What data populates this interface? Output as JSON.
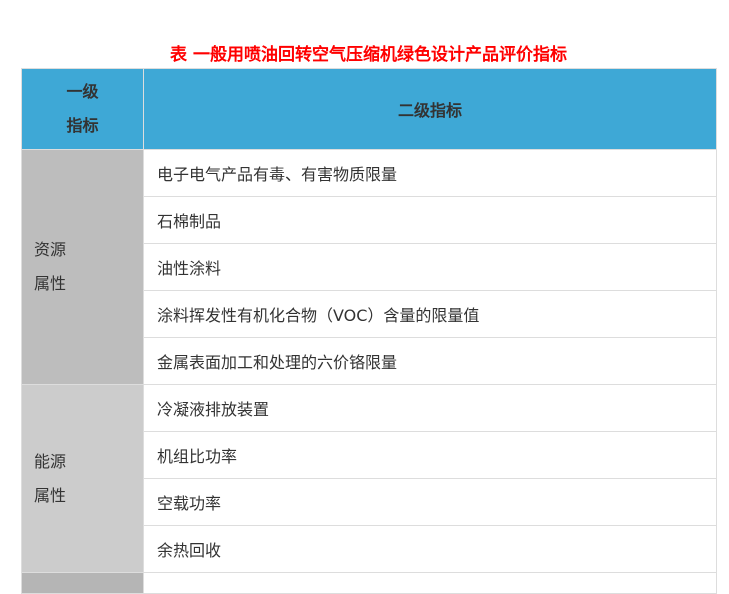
{
  "title": "表  一般用喷油回转空气压缩机绿色设计产品评价指标",
  "header": {
    "col1_line1": "一级",
    "col1_line2": "指标",
    "col2": "二级指标"
  },
  "groups": [
    {
      "line1": "资源",
      "line2": "属性",
      "items": [
        "电子电气产品有毒、有害物质限量",
        "石棉制品",
        "油性涂料",
        "涂料挥发性有机化合物（VOC）含量的限量值",
        "金属表面加工和处理的六价铬限量"
      ]
    },
    {
      "line1": "能源",
      "line2": "属性",
      "items": [
        "冷凝液排放装置",
        "机组比功率",
        "空载功率",
        "余热回收"
      ]
    }
  ],
  "colors": {
    "header": "#3ea8d6",
    "title": "#ff0000"
  }
}
